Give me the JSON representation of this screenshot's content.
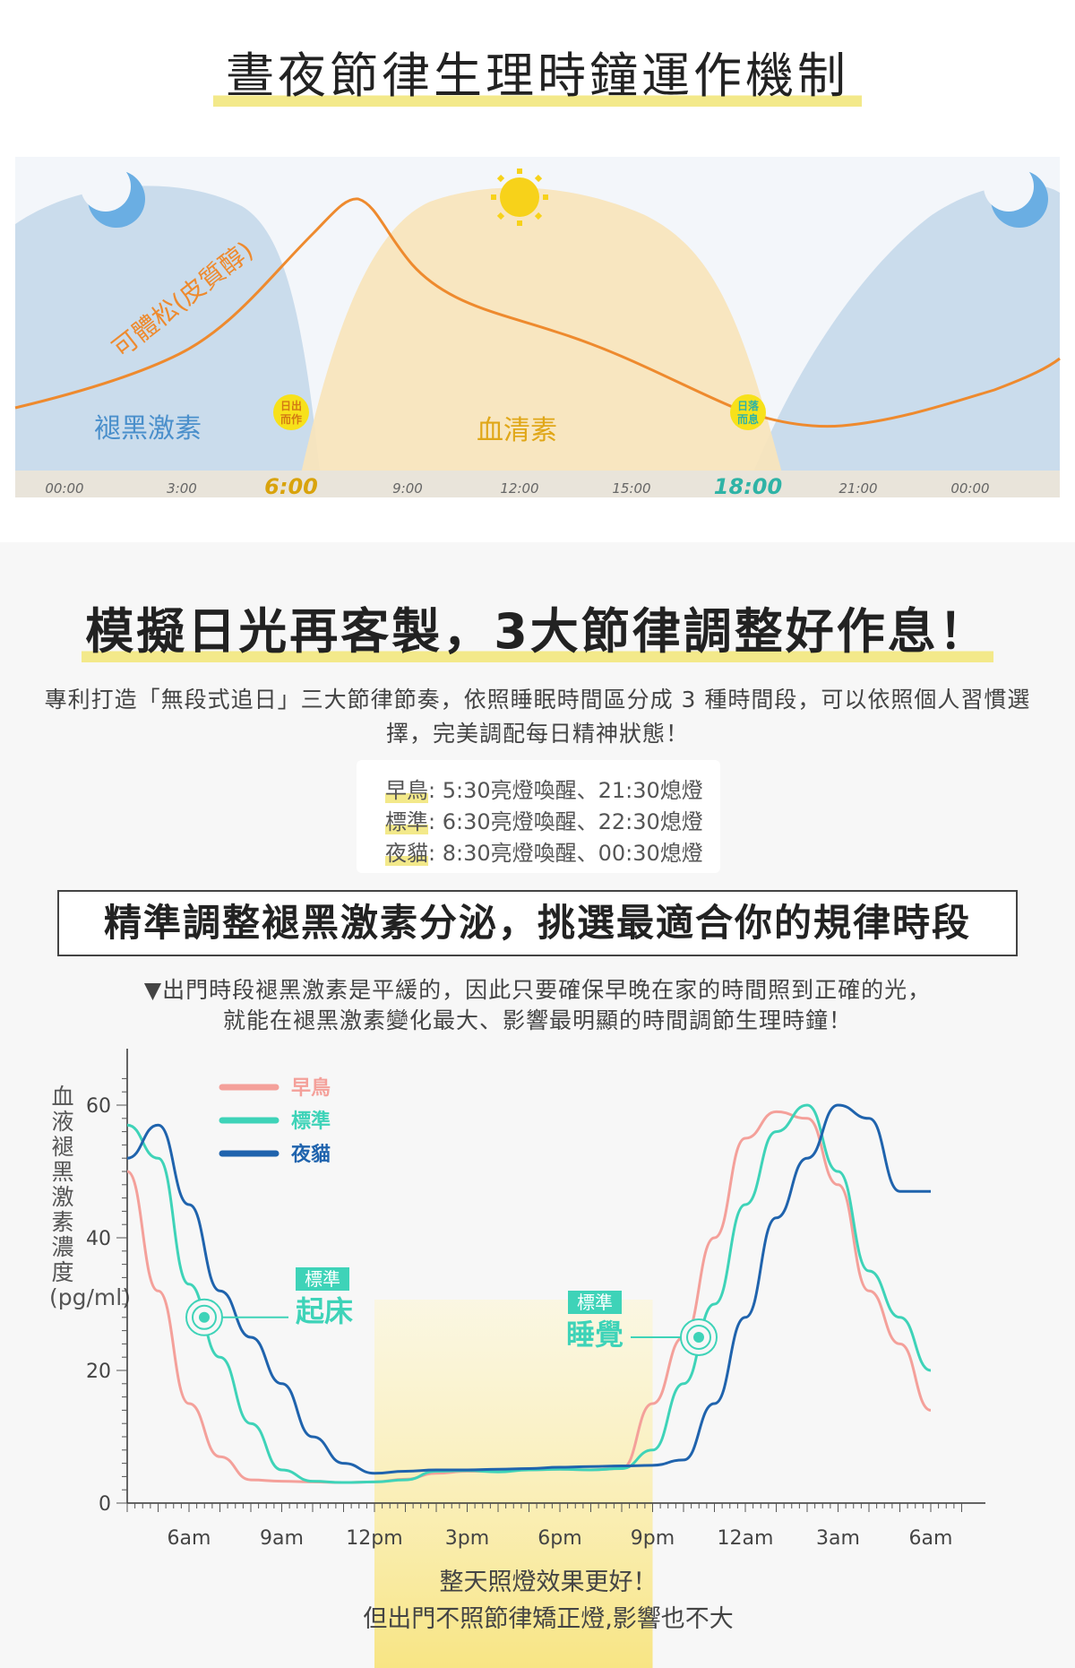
{
  "section1": {
    "title": "晝夜節律生理時鐘運作機制",
    "labels": {
      "cortisol": "可體松(皮質醇)",
      "melatonin": "褪黑激素",
      "serotonin": "血清素",
      "sunrise": [
        "日出",
        "而作"
      ],
      "sunset": [
        "日落",
        "而息"
      ]
    },
    "time_ticks": [
      "00:00",
      "3:00",
      "6:00",
      "9:00",
      "12:00",
      "15:00",
      "18:00",
      "21:00",
      "00:00"
    ],
    "colors": {
      "cortisol": "#ee8a2e",
      "melatonin_band": "#c9dcec",
      "serotonin_band": "#f9e3b8",
      "moon": "#6aaee3",
      "sun": "#f7d21a",
      "highlight_six": "#d9a30c",
      "highlight_eighteen": "#2fb3a6"
    }
  },
  "section2": {
    "title": "模擬日光再客製，3大節律調整好作息！",
    "description": "專利打造「無段式追日」三大節律節奏，依照睡眠時間區分成 3 種時間段，可以依照個人習慣選擇，完美調配每日精神狀態！",
    "plans": [
      {
        "name": "早鳥",
        "detail": ": 5:30亮燈喚醒、21:30熄燈"
      },
      {
        "name": "標準",
        "detail": ": 6:30亮燈喚醒、22:30熄燈"
      },
      {
        "name": "夜貓",
        "detail": ": 8:30亮燈喚醒、00:30熄燈"
      }
    ],
    "box_title": "精準調整褪黑激素分泌，挑選最適合你的規律時段",
    "note": "▼出門時段褪黑激素是平緩的，因此只要確保早晚在家的時間照到正確的光，就能在褪黑激素變化最大、影響最明顯的時間調節生理時鐘！",
    "callouts": {
      "wake_tag": "標準",
      "wake_label": "起床",
      "sleep_tag": "標準",
      "sleep_label": "睡覺"
    },
    "highlight_caption": [
      "整天照燈效果更好！",
      "但出門不照節律矯正燈,影響也不大"
    ]
  },
  "chart_data": {
    "type": "line",
    "ylabel": "血液褪黑激素濃度 (pg/ml)",
    "xlabel": "",
    "ylim": [
      0,
      70
    ],
    "yticks": [
      0,
      20,
      40,
      60
    ],
    "x_ticks": [
      "6am",
      "9am",
      "12pm",
      "3pm",
      "6pm",
      "9pm",
      "12am",
      "3am",
      "6am"
    ],
    "x": [
      "4am",
      "5am",
      "6am",
      "7am",
      "8am",
      "9am",
      "10am",
      "11am",
      "12pm",
      "1pm",
      "2pm",
      "3pm",
      "4pm",
      "5pm",
      "6pm",
      "7pm",
      "8pm",
      "9pm",
      "10pm",
      "11pm",
      "12am",
      "1am",
      "2am",
      "3am",
      "4am",
      "5am",
      "6am"
    ],
    "series": [
      {
        "name": "早鳥",
        "color": "#f4a09a",
        "values": [
          50,
          32,
          15,
          7,
          3.5,
          3.3,
          3.2,
          3.1,
          3.2,
          3.6,
          4.5,
          4.8,
          4.8,
          5.0,
          5.1,
          5.0,
          5.2,
          15,
          25,
          40,
          55,
          59,
          58,
          48,
          32,
          24,
          14
        ]
      },
      {
        "name": "標準",
        "color": "#3ed3b8",
        "values": [
          57,
          52,
          33,
          22,
          12,
          5,
          3.3,
          3.1,
          3.2,
          3.5,
          4.8,
          4.9,
          4.7,
          5.0,
          5.1,
          5.0,
          5.2,
          8,
          18,
          30,
          45,
          56,
          60,
          50,
          35,
          28,
          20
        ]
      },
      {
        "name": "夜貓",
        "color": "#1f63ad",
        "values": [
          52,
          57,
          45,
          32,
          25,
          18,
          10,
          6,
          4.5,
          4.8,
          5.0,
          5.0,
          5.1,
          5.2,
          5.4,
          5.5,
          5.6,
          5.7,
          6.5,
          15,
          28,
          43,
          52,
          60,
          58,
          47,
          47
        ]
      }
    ],
    "highlight_range": [
      "12pm",
      "9pm"
    ],
    "markers": [
      {
        "series": "標準",
        "x": "6:30am",
        "y": 28
      },
      {
        "series": "標準",
        "x": "10:30pm",
        "y": 25
      }
    ]
  }
}
